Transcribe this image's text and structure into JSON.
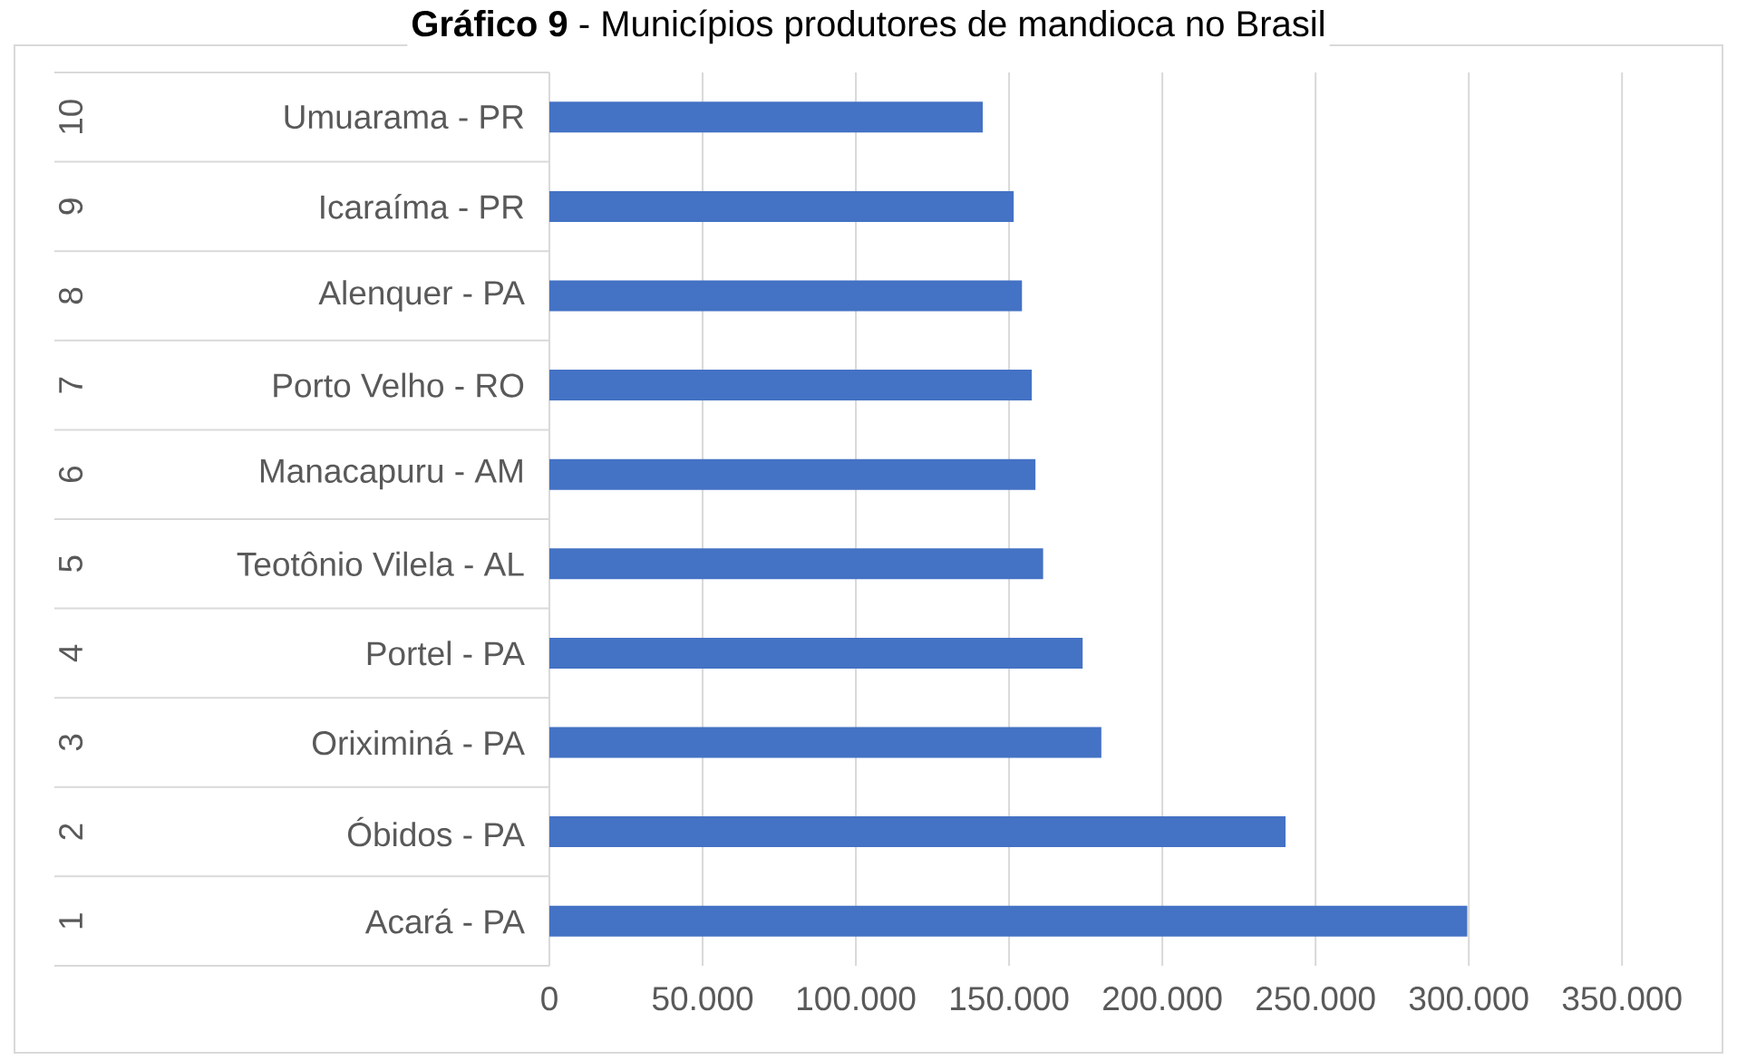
{
  "chart_data": {
    "type": "bar",
    "orientation": "horizontal",
    "title": "**Gráfico 9** - Municípios produtores de mandioca no Brasil",
    "categories": [
      "Umuarama - PR",
      "Icaraíma - PR",
      "Alenquer - PA",
      "Porto Velho - RO",
      "Manacapuru - AM",
      "Teotônio Vilela - AL",
      "Portel - PA",
      "Oriximiná - PA",
      "Óbidos - PA",
      "Acará - PA"
    ],
    "annotations": [
      "10",
      "9",
      "8",
      "7",
      "6",
      "5",
      "4",
      "3",
      "2",
      "1"
    ],
    "values": [
      141400,
      151500,
      154200,
      157400,
      158600,
      161100,
      174000,
      180100,
      240200,
      299500
    ],
    "color": "#4472c4",
    "xlim": [
      0,
      350000
    ],
    "xticks": [
      0,
      {
        "value": 50000,
        "label": "50.000"
      },
      {
        "value": 100000,
        "label": "100.000"
      },
      {
        "value": 150000,
        "label": "150.000"
      },
      {
        "value": 200000,
        "label": "200.000"
      },
      {
        "value": 250000,
        "label": "250.000"
      },
      {
        "value": 300000,
        "label": "300.000"
      },
      {
        "value": 350000,
        "label": "350.000"
      }
    ],
    "grid": "x"
  }
}
